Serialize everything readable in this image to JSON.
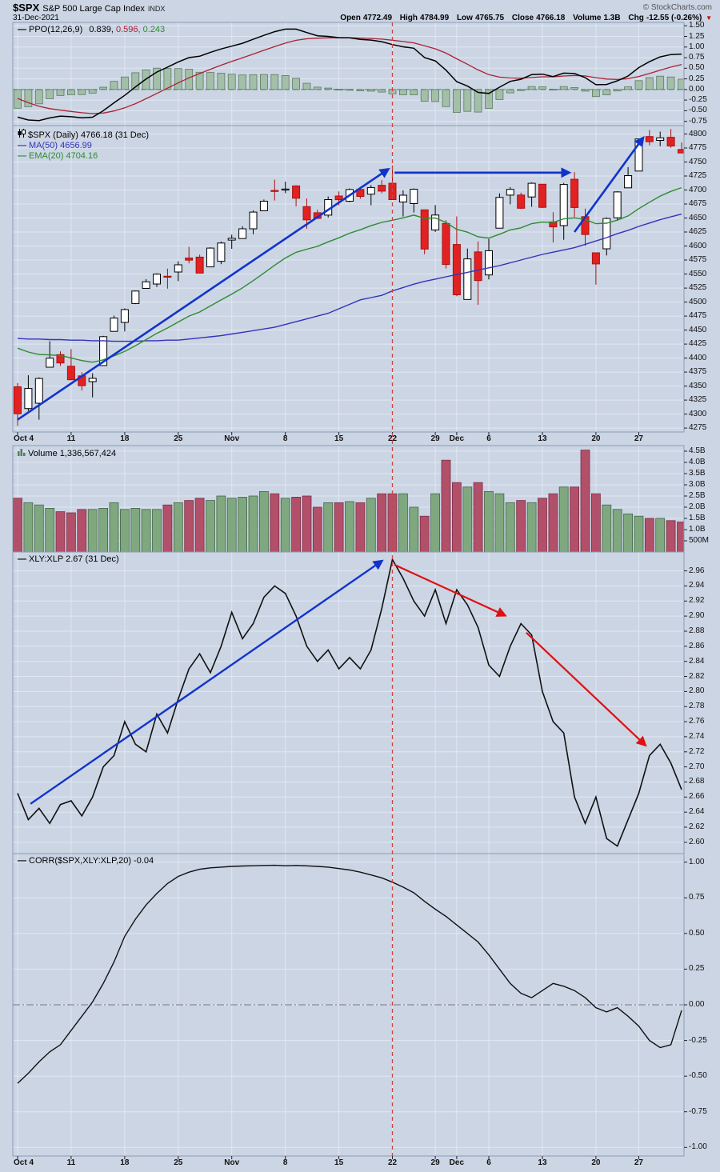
{
  "header": {
    "symbol": "$SPX",
    "name": "S&P 500 Large Cap Index",
    "exchange": "INDX",
    "copyright": "© StockCharts.com",
    "date": "31-Dec-2021",
    "quote": {
      "items": [
        {
          "label": "Open",
          "value": "4772.49"
        },
        {
          "label": "High",
          "value": "4784.99"
        },
        {
          "label": "Low",
          "value": "4765.75"
        },
        {
          "label": "Close",
          "value": "4766.18"
        },
        {
          "label": "Volume",
          "value": "1.3B"
        },
        {
          "label": "Chg",
          "value": "-12.55 (-0.26%)"
        }
      ],
      "direction": "▼"
    }
  },
  "colors": {
    "background": "#cbd5e4",
    "grid": "#e1e8f3",
    "panel_border": "#8d9cb3",
    "candle_up_stroke": "#000000",
    "candle_up_fill": "#ffffff",
    "candle_down_stroke": "#aa1111",
    "candle_down_fill": "#e22222",
    "ma50": "#3333bb",
    "ema20": "#2e8b2e",
    "ppo_line": "#000000",
    "ppo_signal": "#aa2233",
    "ppo_hist_fill": "#a3bfa8",
    "ppo_hist_stroke": "#5c7a62",
    "vol_up_fill": "#7fa87f",
    "vol_up_stroke": "#44654a",
    "vol_down_fill": "#b2506a",
    "vol_down_stroke": "#7c2f47",
    "ratio_line": "#111111",
    "corr_line": "#111111",
    "arrow_blue": "#1133cc",
    "arrow_red": "#e01010",
    "vline_red": "#cc4444",
    "zero_green": "#2e8b57"
  },
  "x_axis": {
    "vline_index": 35,
    "labels": [
      {
        "i": 0,
        "t": "Oct 4"
      },
      {
        "i": 5,
        "t": "11"
      },
      {
        "i": 10,
        "t": "18"
      },
      {
        "i": 15,
        "t": "25"
      },
      {
        "i": 20,
        "t": "Nov"
      },
      {
        "i": 25,
        "t": "8"
      },
      {
        "i": 30,
        "t": "15"
      },
      {
        "i": 35,
        "t": "22"
      },
      {
        "i": 39,
        "t": "29"
      },
      {
        "i": 41,
        "t": "Dec"
      },
      {
        "i": 44,
        "t": "6"
      },
      {
        "i": 49,
        "t": "13"
      },
      {
        "i": 54,
        "t": "20"
      },
      {
        "i": 58,
        "t": "27"
      }
    ]
  },
  "chart_data": [
    {
      "id": "ppo",
      "type": "line+histogram",
      "legend": "PPO(12,26,9)",
      "values": [
        "0.839,",
        "0.596,",
        "0.243"
      ],
      "seeds": {
        "ema12": 4430,
        "ema26": 4450,
        "signal": -0.1
      },
      "ylim": [
        -0.85,
        1.58
      ],
      "yticks": [
        1.5,
        1.25,
        1.0,
        0.75,
        0.5,
        0.25,
        0.0,
        -0.25,
        -0.5,
        -0.75
      ]
    },
    {
      "id": "price",
      "type": "candlestick",
      "legend": "$SPX (Daily) 4766.18 (31 Dec)",
      "ma50_legend": "MA(50) 4656.99",
      "ema20_legend": "EMA(20) 4704.16",
      "ema20_seed": 4430,
      "ylim": [
        4268,
        4815
      ],
      "yticks": [
        4800,
        4775,
        4750,
        4725,
        4700,
        4675,
        4650,
        4625,
        4600,
        4575,
        4550,
        4525,
        4500,
        4475,
        4450,
        4425,
        4400,
        4375,
        4350,
        4325,
        4300,
        4275
      ],
      "dates": [
        "Oct 4",
        "Oct 5",
        "Oct 6",
        "Oct 7",
        "Oct 8",
        "Oct 11",
        "Oct 12",
        "Oct 13",
        "Oct 14",
        "Oct 15",
        "Oct 18",
        "Oct 19",
        "Oct 20",
        "Oct 21",
        "Oct 22",
        "Oct 25",
        "Oct 26",
        "Oct 27",
        "Oct 28",
        "Oct 29",
        "Nov 1",
        "Nov 2",
        "Nov 3",
        "Nov 4",
        "Nov 5",
        "Nov 8",
        "Nov 9",
        "Nov 10",
        "Nov 11",
        "Nov 12",
        "Nov 15",
        "Nov 16",
        "Nov 17",
        "Nov 18",
        "Nov 19",
        "Nov 22",
        "Nov 23",
        "Nov 24",
        "Nov 26",
        "Nov 29",
        "Nov 30",
        "Dec 1",
        "Dec 2",
        "Dec 3",
        "Dec 6",
        "Dec 7",
        "Dec 8",
        "Dec 9",
        "Dec 10",
        "Dec 13",
        "Dec 14",
        "Dec 15",
        "Dec 16",
        "Dec 17",
        "Dec 20",
        "Dec 21",
        "Dec 22",
        "Dec 23",
        "Dec 27",
        "Dec 28",
        "Dec 29",
        "Dec 30",
        "Dec 31"
      ],
      "open": [
        4348.8,
        4309.9,
        4319.5,
        4383.7,
        4406.1,
        4385.4,
        4368.3,
        4358.0,
        4386.8,
        4447.7,
        4463.7,
        4497.3,
        4524.4,
        4532.2,
        4546.1,
        4553.7,
        4578.7,
        4580.2,
        4562.8,
        4572.9,
        4610.6,
        4613.3,
        4630.7,
        4662.9,
        4699.3,
        4701.5,
        4707.3,
        4670.3,
        4659.4,
        4655.2,
        4689.3,
        4680.0,
        4701.1,
        4692.7,
        4708.4,
        4712.0,
        4678.5,
        4675.8,
        4664.6,
        4628.8,
        4640.3,
        4602.8,
        4504.7,
        4589.5,
        4548.4,
        4632.0,
        4690.9,
        4691.0,
        4687.6,
        4710.3,
        4643.0,
        4636.5,
        4719.1,
        4652.5,
        4587.9,
        4595.0,
        4650.4,
        4704.0,
        4734.0,
        4795.5,
        4788.6,
        4794.2,
        4772.5
      ],
      "high": [
        4355.5,
        4369.2,
        4365.5,
        4430.0,
        4412.0,
        4415.9,
        4374.9,
        4372.9,
        4439.7,
        4475.8,
        4488.8,
        4520.4,
        4540.9,
        4551.4,
        4559.7,
        4572.6,
        4598.5,
        4584.6,
        4597.6,
        4608.1,
        4620.3,
        4635.2,
        4663.5,
        4683.0,
        4718.5,
        4714.9,
        4708.5,
        4684.9,
        4664.6,
        4688.5,
        4697.4,
        4702.9,
        4701.2,
        4708.8,
        4717.8,
        4743.8,
        4699.4,
        4702.9,
        4664.6,
        4673.0,
        4646.0,
        4652.9,
        4595.5,
        4608.0,
        4612.6,
        4694.0,
        4705.1,
        4695.3,
        4713.6,
        4710.3,
        4660.5,
        4712.6,
        4732.0,
        4666.7,
        4587.9,
        4651.1,
        4697.7,
        4740.7,
        4791.5,
        4807.0,
        4804.1,
        4808.9,
        4785.0
      ],
      "low": [
        4278.9,
        4305.9,
        4290.0,
        4383.7,
        4386.2,
        4360.6,
        4342.1,
        4329.9,
        4386.8,
        4447.7,
        4447.5,
        4496.4,
        4524.4,
        4526.9,
        4524.0,
        4537.4,
        4569.2,
        4551.7,
        4562.8,
        4567.6,
        4595.1,
        4613.3,
        4621.2,
        4662.6,
        4681.3,
        4694.4,
        4670.9,
        4630.9,
        4648.3,
        4650.8,
        4672.9,
        4678.4,
        4684.4,
        4672.8,
        4694.2,
        4682.2,
        4652.7,
        4659.9,
        4585.4,
        4625.3,
        4560.0,
        4510.3,
        4504.7,
        4495.1,
        4540.5,
        4632.0,
        4674.5,
        4666.0,
        4670.2,
        4667.6,
        4606.5,
        4611.2,
        4651.9,
        4600.2,
        4531.1,
        4583.2,
        4645.5,
        4704.0,
        4734.0,
        4780.0,
        4778.1,
        4775.3,
        4765.8
      ],
      "close": [
        4300.5,
        4345.7,
        4363.6,
        4399.8,
        4391.3,
        4361.2,
        4350.7,
        4363.8,
        4438.3,
        4471.4,
        4486.5,
        4519.6,
        4536.2,
        4549.8,
        4544.9,
        4566.5,
        4574.8,
        4551.7,
        4596.4,
        4605.4,
        4613.7,
        4630.7,
        4660.6,
        4680.1,
        4697.5,
        4701.7,
        4685.3,
        4646.7,
        4649.3,
        4682.9,
        4682.8,
        4700.9,
        4688.7,
        4704.5,
        4698.0,
        4682.9,
        4690.7,
        4701.5,
        4594.6,
        4655.3,
        4567.0,
        4513.0,
        4577.1,
        4538.4,
        4591.7,
        4686.8,
        4701.2,
        4667.5,
        4712.0,
        4669.0,
        4634.1,
        4709.9,
        4668.7,
        4620.6,
        4568.0,
        4649.2,
        4696.6,
        4725.8,
        4791.2,
        4786.4,
        4793.1,
        4778.7,
        4766.2
      ],
      "ma50": [
        4435,
        4434,
        4434,
        4433,
        4433,
        4432,
        4432,
        4431,
        4431,
        4430,
        4430,
        4430,
        4431,
        4431,
        4432,
        4432,
        4434,
        4436,
        4438,
        4440,
        4443,
        4446,
        4449,
        4452,
        4455,
        4460,
        4465,
        4470,
        4475,
        4480,
        4488,
        4496,
        4504,
        4508,
        4512,
        4520,
        4526,
        4532,
        4537,
        4541,
        4545,
        4549,
        4553,
        4557,
        4561,
        4565,
        4570,
        4575,
        4580,
        4585,
        4589,
        4593,
        4597,
        4603,
        4609,
        4615,
        4622,
        4628,
        4635,
        4641,
        4647,
        4652,
        4657
      ],
      "annotations": [
        {
          "color": "blue",
          "width": 2.6,
          "from": [
            0,
            4290
          ],
          "to": [
            34.6,
            4737
          ]
        },
        {
          "color": "blue",
          "width": 2.6,
          "from": [
            35.2,
            4731
          ],
          "to": [
            51.5,
            4731
          ]
        },
        {
          "color": "blue",
          "width": 2.6,
          "from": [
            52.0,
            4625
          ],
          "to": [
            58.4,
            4793
          ]
        }
      ]
    },
    {
      "id": "volume",
      "type": "bar",
      "legend": "Volume 1,336,567,424",
      "ylim": [
        0,
        4.75
      ],
      "yticks": [
        {
          "v": 4.5,
          "t": "4.5B"
        },
        {
          "v": 4.0,
          "t": "4.0B"
        },
        {
          "v": 3.5,
          "t": "3.5B"
        },
        {
          "v": 3.0,
          "t": "3.0B"
        },
        {
          "v": 2.5,
          "t": "2.5B"
        },
        {
          "v": 2.0,
          "t": "2.0B"
        },
        {
          "v": 1.5,
          "t": "1.5B"
        },
        {
          "v": 1.0,
          "t": "1.0B"
        },
        {
          "v": 0.5,
          "t": "500M"
        }
      ],
      "values_billions": [
        2.4,
        2.2,
        2.1,
        1.95,
        1.8,
        1.75,
        1.9,
        1.9,
        1.95,
        2.2,
        1.9,
        1.95,
        1.9,
        1.9,
        2.1,
        2.2,
        2.3,
        2.4,
        2.3,
        2.5,
        2.4,
        2.45,
        2.5,
        2.7,
        2.6,
        2.4,
        2.45,
        2.5,
        2.0,
        2.2,
        2.2,
        2.25,
        2.2,
        2.4,
        2.6,
        2.6,
        2.6,
        2.0,
        1.6,
        2.6,
        4.1,
        3.1,
        2.9,
        3.1,
        2.7,
        2.6,
        2.2,
        2.3,
        2.2,
        2.4,
        2.6,
        2.9,
        2.9,
        4.55,
        2.6,
        2.1,
        1.9,
        1.7,
        1.6,
        1.5,
        1.5,
        1.4,
        1.34
      ]
    },
    {
      "id": "ratio",
      "type": "line",
      "legend": "XLY:XLP 2.67 (31 Dec)",
      "ylim": [
        2.585,
        2.985
      ],
      "yticks": [
        2.96,
        2.94,
        2.92,
        2.9,
        2.88,
        2.86,
        2.84,
        2.82,
        2.8,
        2.78,
        2.76,
        2.74,
        2.72,
        2.7,
        2.68,
        2.66,
        2.64,
        2.62,
        2.6
      ],
      "values": [
        2.665,
        2.63,
        2.645,
        2.625,
        2.65,
        2.655,
        2.635,
        2.66,
        2.7,
        2.715,
        2.76,
        2.73,
        2.72,
        2.77,
        2.745,
        2.79,
        2.83,
        2.85,
        2.825,
        2.86,
        2.905,
        2.87,
        2.89,
        2.925,
        2.94,
        2.93,
        2.9,
        2.86,
        2.84,
        2.855,
        2.83,
        2.845,
        2.83,
        2.855,
        2.91,
        2.975,
        2.95,
        2.92,
        2.9,
        2.935,
        2.89,
        2.935,
        2.915,
        2.885,
        2.835,
        2.82,
        2.86,
        2.89,
        2.875,
        2.8,
        2.76,
        2.745,
        2.66,
        2.625,
        2.66,
        2.605,
        2.595,
        2.63,
        2.665,
        2.715,
        2.73,
        2.705,
        2.67
      ],
      "annotations": [
        {
          "color": "blue",
          "width": 2.4,
          "from": [
            1.2,
            2.651
          ],
          "to": [
            34.0,
            2.973
          ]
        },
        {
          "color": "red",
          "width": 2.2,
          "from": [
            35.2,
            2.968
          ],
          "to": [
            45.5,
            2.901
          ]
        },
        {
          "color": "red",
          "width": 2.2,
          "from": [
            47.5,
            2.878
          ],
          "to": [
            58.6,
            2.729
          ]
        }
      ]
    },
    {
      "id": "corr",
      "type": "line",
      "legend": "CORR($SPX,XLY:XLP,20) -0.04",
      "ylim": [
        -1.06,
        1.06
      ],
      "yticks": [
        1.0,
        0.75,
        0.5,
        0.25,
        0.0,
        -0.25,
        -0.5,
        -0.75,
        -1.0
      ],
      "values": [
        -0.55,
        -0.48,
        -0.4,
        -0.33,
        -0.28,
        -0.18,
        -0.08,
        0.02,
        0.15,
        0.3,
        0.48,
        0.6,
        0.7,
        0.78,
        0.85,
        0.9,
        0.93,
        0.95,
        0.96,
        0.965,
        0.97,
        0.973,
        0.975,
        0.977,
        0.978,
        0.975,
        0.977,
        0.974,
        0.97,
        0.965,
        0.955,
        0.945,
        0.93,
        0.91,
        0.89,
        0.86,
        0.825,
        0.785,
        0.725,
        0.67,
        0.62,
        0.56,
        0.5,
        0.44,
        0.35,
        0.25,
        0.15,
        0.08,
        0.05,
        0.1,
        0.15,
        0.13,
        0.1,
        0.05,
        -0.02,
        -0.05,
        -0.02,
        -0.08,
        -0.15,
        -0.25,
        -0.3,
        -0.28,
        -0.04
      ]
    }
  ]
}
